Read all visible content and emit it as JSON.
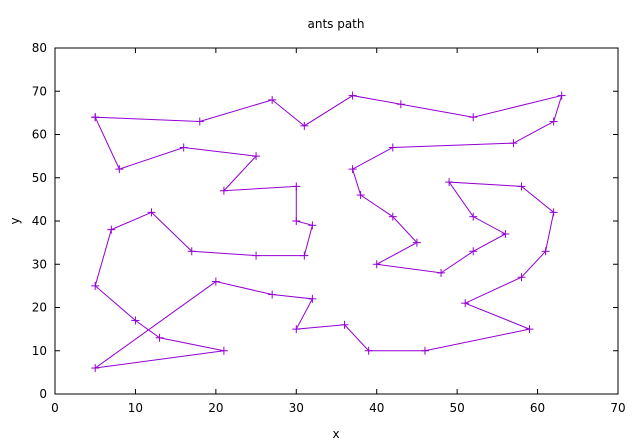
{
  "chart_data": {
    "type": "line",
    "title": "ants path",
    "xlabel": "x",
    "ylabel": "y",
    "xlim": [
      0,
      70
    ],
    "ylim": [
      0,
      80
    ],
    "xticks": [
      "0",
      "10",
      "20",
      "30",
      "40",
      "50",
      "60",
      "70"
    ],
    "yticks": [
      "0",
      "10",
      "20",
      "30",
      "40",
      "50",
      "60",
      "70",
      "80"
    ],
    "grid": false,
    "legend": "none",
    "marker": "plus",
    "series": [
      {
        "color": "#9400d3",
        "points": [
          [
            5,
            64
          ],
          [
            18,
            63
          ],
          [
            27,
            68
          ],
          [
            31,
            62
          ],
          [
            37,
            69
          ],
          [
            43,
            67
          ],
          [
            52,
            64
          ],
          [
            63,
            69
          ],
          [
            62,
            63
          ],
          [
            57,
            58
          ],
          [
            42,
            57
          ],
          [
            37,
            52
          ],
          [
            38,
            46
          ],
          [
            42,
            41
          ],
          [
            45,
            35
          ],
          [
            40,
            30
          ],
          [
            48,
            28
          ],
          [
            52,
            33
          ],
          [
            56,
            37
          ],
          [
            52,
            41
          ],
          [
            49,
            49
          ],
          [
            58,
            48
          ],
          [
            62,
            42
          ],
          [
            61,
            33
          ],
          [
            58,
            27
          ],
          [
            51,
            21
          ],
          [
            59,
            15
          ],
          [
            46,
            10
          ],
          [
            39,
            10
          ],
          [
            36,
            16
          ],
          [
            30,
            15
          ],
          [
            32,
            22
          ],
          [
            27,
            23
          ],
          [
            20,
            26
          ],
          [
            5,
            6
          ],
          [
            21,
            10
          ],
          [
            13,
            13
          ],
          [
            10,
            17
          ],
          [
            5,
            25
          ],
          [
            7,
            38
          ],
          [
            12,
            42
          ],
          [
            17,
            33
          ],
          [
            25,
            32
          ],
          [
            31,
            32
          ],
          [
            32,
            39
          ],
          [
            30,
            40
          ],
          [
            30,
            48
          ],
          [
            21,
            47
          ],
          [
            25,
            55
          ],
          [
            16,
            57
          ],
          [
            8,
            52
          ],
          [
            5,
            64
          ]
        ]
      }
    ]
  }
}
